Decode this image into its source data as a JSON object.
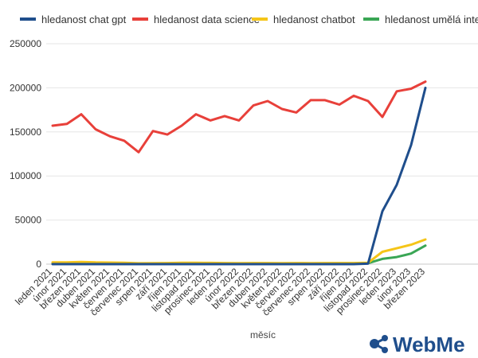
{
  "chart_data": {
    "type": "line",
    "title": "",
    "xlabel": "měsíc",
    "ylabel": "",
    "ylim": [
      0,
      250000
    ],
    "y_ticks": [
      0,
      50000,
      100000,
      150000,
      200000,
      250000
    ],
    "y_tick_labels": [
      "0",
      "50000",
      "100000",
      "150000",
      "200000",
      "250000"
    ],
    "grid": true,
    "legend_position": "top",
    "categories": [
      "leden 2021",
      "únor 2021",
      "březen 2021",
      "duben 2021",
      "květen 2021",
      "červen 2021",
      "červenec 2021",
      "srpen 2021",
      "září 2021",
      "říjen 2021",
      "listopad 2021",
      "prosinec 2021",
      "leden 2022",
      "únor 2022",
      "březen 2022",
      "duben 2022",
      "květen 2022",
      "červen 2022",
      "červenec 2022",
      "srpen 2022",
      "září 2022",
      "říjen 2022",
      "listopad 2022",
      "prosinec 2022",
      "leden 2023",
      "únor 2023",
      "březen 2023"
    ],
    "series": [
      {
        "name": "hledanost chat gpt",
        "color": "#1f4e8c",
        "values": [
          0,
          0,
          0,
          0,
          0,
          0,
          0,
          0,
          0,
          0,
          0,
          0,
          0,
          0,
          0,
          0,
          0,
          0,
          0,
          0,
          0,
          0,
          500,
          60000,
          90000,
          135000,
          200000
        ]
      },
      {
        "name": "hledanost data science",
        "color": "#e8403a",
        "values": [
          157000,
          159000,
          170000,
          153000,
          145000,
          140000,
          127000,
          151000,
          147000,
          157000,
          170000,
          163000,
          168000,
          163000,
          180000,
          185000,
          176000,
          172000,
          186000,
          186000,
          181000,
          191000,
          185000,
          167000,
          196000,
          199000,
          207000
        ]
      },
      {
        "name": "hledanost chatbot",
        "color": "#f5c518",
        "values": [
          2000,
          2000,
          2500,
          2000,
          1800,
          1500,
          1000,
          1200,
          1300,
          1500,
          1500,
          1400,
          1300,
          1200,
          1300,
          1300,
          1200,
          1300,
          1200,
          1300,
          1300,
          1300,
          1500,
          14000,
          18000,
          22000,
          28000
        ]
      },
      {
        "name": "hledanost umělá inteligence",
        "color": "#3aa655",
        "values": [
          1000,
          1000,
          1200,
          1000,
          900,
          900,
          700,
          800,
          900,
          1000,
          1000,
          900,
          900,
          900,
          900,
          900,
          900,
          900,
          900,
          900,
          1000,
          1000,
          1100,
          6000,
          8000,
          12000,
          21000
        ]
      }
    ]
  },
  "brand": {
    "logo_text": "WebMe"
  }
}
